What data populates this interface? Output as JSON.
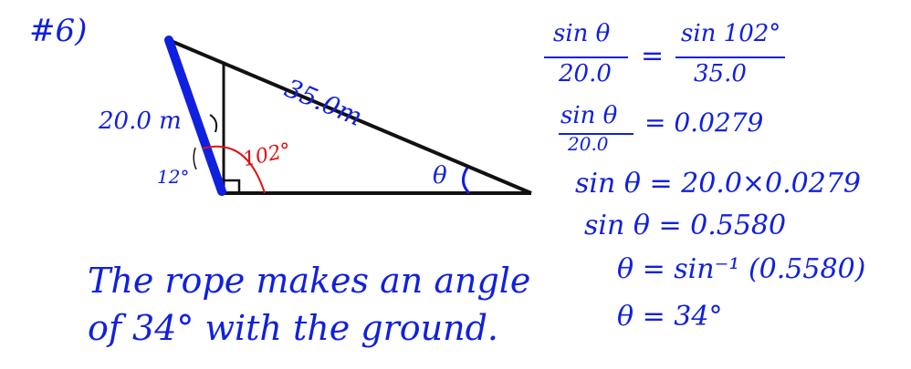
{
  "problem_number": "#6)",
  "diagram": {
    "pole_length": "20.0 m",
    "rope_length": "35.0m",
    "angle_between_pole_and_vertical": "12°",
    "angle_pole_ground": "102°",
    "angle_symbol": "θ"
  },
  "work": {
    "line1_left_num": "sin θ",
    "line1_left_den": "20.0",
    "line1_equals": "=",
    "line1_right_num": "sin 102°",
    "line1_right_den": "35.0",
    "line2_num": "sin θ",
    "line2_den": "20.0",
    "line2_rhs": "= 0.0279",
    "line3": "sin θ = 20.0×0.0279",
    "line4": "sin θ = 0.5580",
    "line5": "θ = sin⁻¹ (0.5580)",
    "line6": "θ = 34°"
  },
  "conclusion": {
    "line1": "The rope makes an angle",
    "line2": "of 34° with the ground."
  },
  "colors": {
    "ink_blue": "#1020e0",
    "ink_black": "#111111",
    "ink_red": "#e01010"
  }
}
